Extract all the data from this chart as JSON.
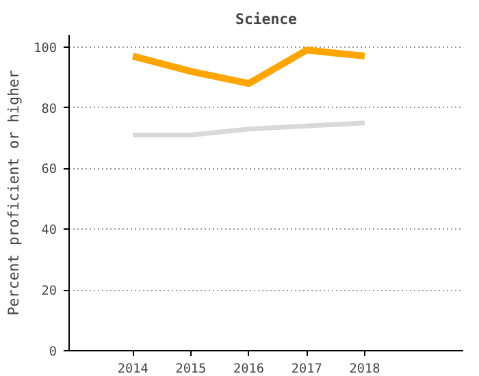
{
  "chart_data": {
    "type": "line",
    "title": "Science",
    "ylabel": "Percent proficient or higher",
    "x": [
      2014,
      2015,
      2016,
      2017,
      2018
    ],
    "series": [
      {
        "color": "#ffa500",
        "values": [
          97,
          92,
          88,
          99,
          97
        ]
      },
      {
        "color": "#d9d9d9",
        "values": [
          71,
          71,
          73,
          74,
          75
        ]
      }
    ],
    "xlim": [
      2012.9,
      2019.7
    ],
    "xticks": [
      2014,
      2015,
      2016,
      2017,
      2018
    ],
    "ylim": [
      0,
      104
    ],
    "yticks": [
      0,
      20,
      40,
      60,
      80,
      100
    ],
    "grid": "y",
    "marker": "none",
    "line_style": "solid"
  }
}
